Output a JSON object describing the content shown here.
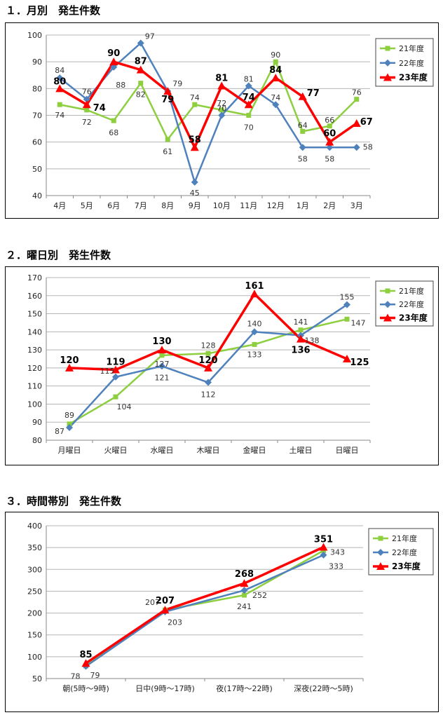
{
  "sections": [
    {
      "title": "１．月別　発生件数"
    },
    {
      "title": "２．曜日別　発生件数"
    },
    {
      "title": "３．時間帯別　発生件数"
    }
  ],
  "colors": {
    "s21": "#8DCF3F",
    "s22": "#4F81BD",
    "s23": "#FF0000"
  },
  "chart_data": [
    {
      "type": "line",
      "title": "１．月別　発生件数",
      "categories": [
        "4月",
        "5月",
        "6月",
        "7月",
        "8月",
        "9月",
        "10月",
        "11月",
        "12月",
        "1月",
        "2月",
        "3月"
      ],
      "ylim": [
        40,
        100
      ],
      "yticks": [
        40,
        50,
        60,
        70,
        80,
        90,
        100
      ],
      "grid": true,
      "legend": "top-right",
      "series": [
        {
          "name": "21年度",
          "values": [
            74,
            72,
            68,
            82,
            61,
            74,
            72,
            70,
            90,
            64,
            66,
            76
          ]
        },
        {
          "name": "22年度",
          "values": [
            84,
            76,
            88,
            97,
            79,
            45,
            70,
            81,
            74,
            58,
            58,
            58
          ]
        },
        {
          "name": "23年度",
          "values": [
            80,
            74,
            90,
            87,
            79,
            58,
            81,
            74,
            84,
            77,
            60,
            67
          ]
        }
      ]
    },
    {
      "type": "line",
      "title": "２．曜日別　発生件数",
      "categories": [
        "月曜日",
        "火曜日",
        "水曜日",
        "木曜日",
        "金曜日",
        "土曜日",
        "日曜日"
      ],
      "ylim": [
        80,
        170
      ],
      "yticks": [
        80,
        90,
        100,
        110,
        120,
        130,
        140,
        150,
        160,
        170
      ],
      "grid": true,
      "legend": "top-right",
      "series": [
        {
          "name": "21年度",
          "values": [
            89,
            104,
            127,
            128,
            133,
            141,
            147
          ]
        },
        {
          "name": "22年度",
          "values": [
            87,
            115,
            121,
            112,
            140,
            138,
            155
          ]
        },
        {
          "name": "23年度",
          "values": [
            120,
            119,
            130,
            120,
            161,
            136,
            125
          ]
        }
      ]
    },
    {
      "type": "line",
      "title": "３．時間帯別　発生件数",
      "categories": [
        "朝(5時～9時)",
        "日中(9時～17時)",
        "夜(17時～22時)",
        "深夜(22時～5時)"
      ],
      "ylim": [
        50,
        400
      ],
      "yticks": [
        50,
        100,
        150,
        200,
        250,
        300,
        350,
        400
      ],
      "grid": true,
      "legend": "top-right",
      "series": [
        {
          "name": "21年度",
          "values": [
            79,
            207,
            241,
            343
          ]
        },
        {
          "name": "22年度",
          "values": [
            78,
            203,
            252,
            333
          ]
        },
        {
          "name": "23年度",
          "values": [
            85,
            207,
            268,
            351
          ]
        }
      ]
    }
  ]
}
